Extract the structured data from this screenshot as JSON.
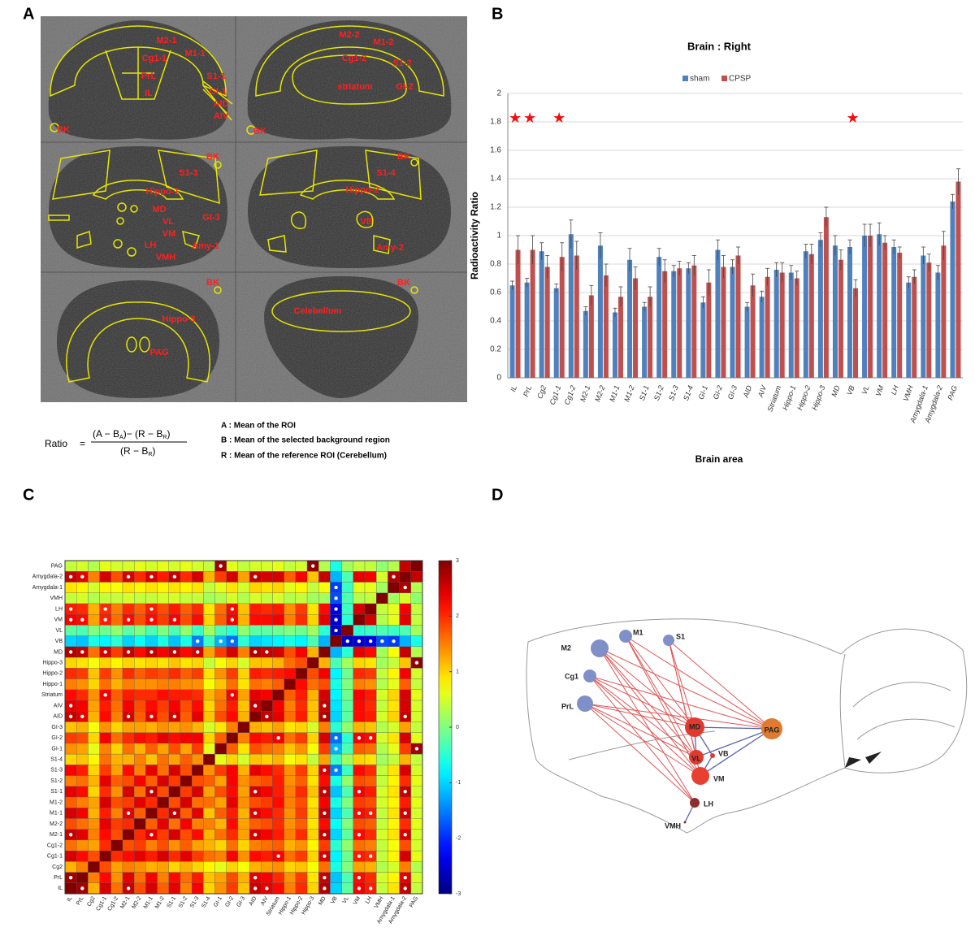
{
  "panel_labels": [
    "A",
    "B",
    "C",
    "D"
  ],
  "panel_a": {
    "labels": [
      "M2-1",
      "Cg1-1",
      "M1-1",
      "PrL",
      "S1-1",
      "IL",
      "GI-1",
      "AID",
      "AIV",
      "BK",
      "M2-2",
      "M1-2",
      "Cg1-2",
      "S1-2",
      "striatum",
      "GI-2",
      "BK",
      "BK",
      "S1-3",
      "Hippo-1",
      "MD",
      "VL",
      "GI-3",
      "VM",
      "LH",
      "Amy-1",
      "VMH",
      "BK",
      "S1-4",
      "Hippo-2",
      "VB",
      "Amy-2",
      "BK",
      "Hippo-3",
      "PAG",
      "BK",
      "Celebellum"
    ],
    "formula": {
      "lhs": "Ratio",
      "eq": "=",
      "num_1": "(A − B",
      "sub_1": "A",
      "num_2": ")− (R − B",
      "sub_2": "R",
      "num_3": ")",
      "den_1": "(R − B",
      "sub_3": "R",
      "den_2": ")"
    },
    "legend": [
      "A : Mean of the ROI",
      "B : Mean of the selected background region",
      "R : Mean of the reference ROI (Cerebellum)"
    ]
  },
  "chart_data": [
    {
      "type": "bar",
      "title": "Brain : Right",
      "y_label": "Radioactivity Ratio",
      "x_label": "Brain area",
      "categories": [
        "IL",
        "PrL",
        "Cg2",
        "Cg1-1",
        "Cg1-2",
        "M2-1",
        "M2-2",
        "M1-1",
        "M1-2",
        "S1-1",
        "S1-2",
        "S1-3",
        "S1-4",
        "GI-1",
        "GI-2",
        "GI-3",
        "AID",
        "AIV",
        "Striatum",
        "Hippo-1",
        "Hippo-2",
        "Hippo-3",
        "MD",
        "VB",
        "VL",
        "VM",
        "LH",
        "VMH",
        "Amygdala-1",
        "Amygdala-2",
        "PAG"
      ],
      "series": [
        {
          "name": "sham",
          "color": "#4f81bd",
          "values": [
            0.65,
            0.67,
            0.89,
            0.63,
            1.01,
            0.47,
            0.93,
            0.46,
            0.83,
            0.5,
            0.85,
            0.75,
            0.77,
            0.53,
            0.9,
            0.78,
            0.5,
            0.57,
            0.76,
            0.74,
            0.89,
            0.97,
            0.93,
            0.92,
            1.0,
            1.01,
            0.92,
            0.67,
            0.86,
            0.74,
            1.24
          ],
          "errors": [
            0.03,
            0.03,
            0.06,
            0.03,
            0.1,
            0.03,
            0.09,
            0.03,
            0.08,
            0.03,
            0.06,
            0.04,
            0.04,
            0.04,
            0.07,
            0.05,
            0.03,
            0.04,
            0.05,
            0.05,
            0.05,
            0.05,
            0.07,
            0.05,
            0.08,
            0.08,
            0.05,
            0.04,
            0.06,
            0.05,
            0.05
          ]
        },
        {
          "name": "CPSP",
          "color": "#c0504d",
          "values": [
            0.9,
            0.9,
            0.78,
            0.85,
            0.86,
            0.58,
            0.72,
            0.57,
            0.7,
            0.57,
            0.75,
            0.77,
            0.79,
            0.67,
            0.78,
            0.86,
            0.65,
            0.71,
            0.74,
            0.7,
            0.87,
            1.13,
            0.83,
            0.63,
            1.0,
            0.95,
            0.88,
            0.71,
            0.81,
            0.93,
            1.38
          ],
          "errors": [
            0.1,
            0.1,
            0.08,
            0.1,
            0.1,
            0.07,
            0.08,
            0.07,
            0.08,
            0.07,
            0.08,
            0.05,
            0.07,
            0.09,
            0.08,
            0.06,
            0.08,
            0.06,
            0.07,
            0.05,
            0.07,
            0.07,
            0.07,
            0.06,
            0.08,
            0.05,
            0.04,
            0.05,
            0.06,
            0.1,
            0.09
          ]
        }
      ],
      "ylim": [
        0,
        2
      ],
      "yticks": [
        0,
        0.2,
        0.4,
        0.6,
        0.8,
        1,
        1.2,
        1.4,
        1.6,
        1.8,
        2
      ],
      "grid": true,
      "stars": [
        {
          "category": "IL",
          "text": "★"
        },
        {
          "category": "PrL",
          "text": "★"
        },
        {
          "category": "Cg1-1",
          "text": "★"
        },
        {
          "category": "VB",
          "text": "★"
        }
      ]
    },
    {
      "type": "heatmap",
      "labels": [
        "IL",
        "PrL",
        "Cg2",
        "Cg1-1",
        "Cg1-2",
        "M2-1",
        "M2-2",
        "M1-1",
        "M1-2",
        "S1-1",
        "S1-2",
        "S1-3",
        "S1-4",
        "GI-1",
        "GI-2",
        "GI-3",
        "AID",
        "AIV",
        "Striatum",
        "Hippo-1",
        "Hippo-2",
        "Hippo-3",
        "MD",
        "VB",
        "VL",
        "VM",
        "LH",
        "VMH",
        "Amygdala-1",
        "Amygdala-2",
        "PAG"
      ],
      "matrix": [
        [
          3
        ],
        [
          2.8,
          3
        ],
        [
          1.2,
          1.5,
          3
        ],
        [
          2.5,
          2.2,
          1.8,
          3
        ],
        [
          1.6,
          1.4,
          1.3,
          2.0,
          3
        ],
        [
          2.6,
          2.4,
          1.5,
          2.2,
          1.8,
          3
        ],
        [
          1.8,
          1.6,
          1.4,
          2.4,
          1.9,
          2.0,
          3
        ],
        [
          2.5,
          2.3,
          1.2,
          2.1,
          1.5,
          2.4,
          1.7,
          3
        ],
        [
          1.7,
          1.5,
          1.3,
          2.5,
          1.8,
          1.9,
          2.4,
          2.0,
          3
        ],
        [
          2.4,
          2.2,
          1.0,
          2.0,
          1.4,
          2.5,
          1.6,
          2.6,
          1.8,
          3
        ],
        [
          1.5,
          1.6,
          1.2,
          2.4,
          1.7,
          1.8,
          2.3,
          1.7,
          2.5,
          1.9,
          3
        ],
        [
          2.3,
          2.1,
          1.0,
          1.9,
          1.3,
          2.2,
          1.5,
          2.4,
          1.6,
          2.5,
          1.8,
          3
        ],
        [
          1.0,
          1.1,
          0.8,
          1.6,
          1.2,
          1.2,
          1.5,
          1.1,
          1.6,
          1.3,
          1.7,
          1.4,
          3
        ],
        [
          1.4,
          1.3,
          0.6,
          1.5,
          1.0,
          1.6,
          1.2,
          1.7,
          1.3,
          1.8,
          1.3,
          1.9,
          0.6,
          3
        ],
        [
          1.9,
          1.8,
          1.0,
          2.3,
          1.6,
          2.0,
          2.2,
          2.1,
          2.4,
          2.2,
          2.3,
          2.3,
          1.0,
          1.7,
          3
        ],
        [
          1.1,
          1.2,
          0.7,
          1.4,
          1.0,
          1.3,
          1.3,
          1.2,
          1.4,
          1.3,
          1.4,
          1.2,
          0.5,
          0.9,
          1.5,
          3
        ],
        [
          2.6,
          2.4,
          1.2,
          2.2,
          1.5,
          2.5,
          1.7,
          2.4,
          1.8,
          2.5,
          1.7,
          2.4,
          1.1,
          1.8,
          2.2,
          1.2,
          3
        ],
        [
          2.4,
          2.3,
          1.3,
          2.1,
          1.6,
          2.3,
          1.8,
          2.2,
          1.9,
          2.3,
          1.8,
          2.2,
          1.0,
          1.6,
          2.1,
          1.1,
          2.6,
          3
        ],
        [
          2.2,
          2.0,
          1.4,
          2.3,
          1.7,
          2.1,
          2.0,
          2.0,
          2.2,
          2.1,
          2.1,
          2.0,
          1.2,
          1.5,
          2.3,
          1.3,
          2.4,
          2.3,
          3
        ],
        [
          1.5,
          1.4,
          1.0,
          1.6,
          1.2,
          1.5,
          1.4,
          1.4,
          1.5,
          1.5,
          1.4,
          1.4,
          0.7,
          1.1,
          1.6,
          0.9,
          1.6,
          1.5,
          1.7,
          3
        ],
        [
          2.0,
          1.9,
          1.1,
          1.9,
          1.4,
          2.0,
          1.7,
          1.9,
          1.8,
          2.0,
          1.7,
          1.9,
          0.9,
          1.4,
          1.9,
          1.0,
          2.1,
          2.0,
          2.1,
          2.2,
          3
        ],
        [
          1.0,
          0.9,
          0.7,
          1.0,
          0.8,
          1.0,
          0.9,
          1.0,
          0.9,
          1.1,
          0.9,
          1.0,
          0.4,
          0.7,
          1.0,
          0.5,
          1.1,
          1.1,
          1.2,
          1.6,
          1.8,
          3
        ],
        [
          2.7,
          2.6,
          1.6,
          2.5,
          1.9,
          2.6,
          2.2,
          2.6,
          2.3,
          2.6,
          2.2,
          2.5,
          1.3,
          1.9,
          2.5,
          1.5,
          2.7,
          2.6,
          2.5,
          1.8,
          2.3,
          1.2,
          3
        ],
        [
          -1.0,
          -1.1,
          -0.6,
          -0.8,
          -0.5,
          -1.0,
          -0.7,
          -1.0,
          -0.6,
          -1.1,
          -0.6,
          -1.5,
          -0.4,
          -1.2,
          -1.6,
          -0.5,
          -1.0,
          -0.9,
          -0.8,
          -0.6,
          -0.8,
          -0.3,
          -1.2,
          3
        ],
        [
          -0.2,
          -0.3,
          0.0,
          -0.1,
          0.1,
          -0.2,
          0.0,
          -0.3,
          0.0,
          -0.3,
          0.1,
          -0.4,
          0.2,
          -0.3,
          -0.5,
          0.1,
          -0.2,
          -0.2,
          -0.1,
          0.0,
          -0.1,
          0.2,
          -0.5,
          -2.6,
          3
        ],
        [
          2.3,
          2.2,
          1.3,
          2.1,
          1.6,
          2.2,
          1.8,
          2.2,
          1.9,
          2.3,
          1.8,
          2.2,
          1.0,
          1.7,
          2.3,
          1.2,
          2.2,
          2.2,
          2.3,
          1.5,
          2.0,
          1.0,
          2.4,
          -2.5,
          -0.5,
          3
        ],
        [
          2.1,
          2.0,
          1.2,
          2.0,
          1.5,
          2.0,
          1.7,
          2.1,
          1.8,
          2.1,
          1.7,
          2.0,
          0.9,
          1.6,
          2.2,
          1.1,
          2.1,
          2.0,
          2.1,
          1.4,
          1.9,
          0.9,
          2.2,
          -2.4,
          -0.4,
          2.5,
          3
        ],
        [
          0.4,
          0.5,
          0.3,
          0.4,
          0.4,
          0.5,
          0.4,
          0.4,
          0.5,
          0.5,
          0.4,
          0.4,
          0.2,
          0.3,
          0.5,
          0.3,
          0.5,
          0.4,
          0.5,
          0.3,
          0.4,
          0.2,
          0.2,
          -1.8,
          -0.3,
          0.3,
          0.4,
          3
        ],
        [
          0.9,
          0.8,
          0.5,
          0.8,
          0.7,
          0.9,
          0.8,
          0.9,
          0.8,
          0.9,
          0.8,
          0.9,
          0.4,
          0.6,
          0.9,
          0.5,
          1.0,
          0.9,
          1.0,
          0.6,
          0.8,
          0.4,
          0.7,
          -1.9,
          -0.4,
          0.6,
          0.6,
          0.2,
          3
        ],
        [
          2.6,
          2.4,
          1.5,
          2.5,
          1.8,
          2.5,
          2.0,
          2.5,
          2.1,
          2.6,
          2.0,
          2.5,
          1.2,
          1.9,
          2.5,
          1.3,
          2.6,
          2.5,
          2.5,
          1.7,
          2.3,
          1.1,
          2.6,
          -1.2,
          -0.3,
          2.4,
          2.3,
          0.5,
          2.7,
          3
        ],
        [
          0.4,
          0.5,
          0.3,
          0.6,
          0.5,
          0.5,
          0.6,
          0.5,
          0.6,
          0.5,
          0.6,
          0.5,
          0.4,
          2.8,
          0.6,
          0.4,
          0.5,
          0.5,
          0.6,
          0.4,
          0.5,
          2.9,
          0.3,
          -0.6,
          0.2,
          0.4,
          0.4,
          0.1,
          0.3,
          2.6,
          3
        ]
      ],
      "significant": [
        [
          22,
          0
        ],
        [
          22,
          1
        ],
        [
          22,
          3
        ],
        [
          22,
          5
        ],
        [
          22,
          7
        ],
        [
          22,
          9
        ],
        [
          22,
          11
        ],
        [
          22,
          16
        ],
        [
          22,
          17
        ],
        [
          25,
          0
        ],
        [
          25,
          1
        ],
        [
          25,
          3
        ],
        [
          25,
          5
        ],
        [
          25,
          7
        ],
        [
          25,
          9
        ],
        [
          25,
          14
        ],
        [
          26,
          0
        ],
        [
          26,
          3
        ],
        [
          26,
          7
        ],
        [
          26,
          14
        ],
        [
          29,
          0
        ],
        [
          29,
          1
        ],
        [
          29,
          5
        ],
        [
          29,
          7
        ],
        [
          29,
          9
        ],
        [
          29,
          16
        ],
        [
          29,
          28
        ],
        [
          16,
          0
        ],
        [
          16,
          1
        ],
        [
          16,
          5
        ],
        [
          16,
          7
        ],
        [
          16,
          9
        ],
        [
          17,
          0
        ],
        [
          17,
          16
        ],
        [
          18,
          3
        ],
        [
          18,
          14
        ],
        [
          1,
          0
        ],
        [
          5,
          0
        ],
        [
          7,
          5
        ],
        [
          9,
          7
        ],
        [
          23,
          11
        ],
        [
          23,
          13
        ],
        [
          23,
          14
        ],
        [
          24,
          23
        ],
        [
          25,
          23
        ],
        [
          26,
          23
        ],
        [
          27,
          23
        ],
        [
          28,
          23
        ],
        [
          30,
          13
        ],
        [
          30,
          21
        ]
      ],
      "clim": [
        -3,
        3
      ],
      "cticks": [
        -3,
        -2,
        -1,
        0,
        1,
        2,
        3
      ],
      "colormap": "jet"
    }
  ],
  "panel_d": {
    "nodes": [
      {
        "label": "M2",
        "color": "#7f8fc8"
      },
      {
        "label": "M1",
        "color": "#7f8fc8"
      },
      {
        "label": "S1",
        "color": "#7f8fc8"
      },
      {
        "label": "Cg1",
        "color": "#7f8fc8"
      },
      {
        "label": "PrL",
        "color": "#7f8fc8"
      },
      {
        "label": "MD",
        "color": "#e03a30"
      },
      {
        "label": "VL",
        "color": "#e03a30"
      },
      {
        "label": "VB",
        "color": "#e03a30"
      },
      {
        "label": "VM",
        "color": "#e84030"
      },
      {
        "label": "LH",
        "color": "#8b2e2e"
      },
      {
        "label": "VMH",
        "color": "#8b2e2e"
      },
      {
        "label": "PAG",
        "color": "#e07a30"
      }
    ],
    "edge_groups": [
      {
        "color": "#e05555",
        "pairs": [
          [
            0,
            5
          ],
          [
            0,
            6
          ],
          [
            0,
            8
          ],
          [
            0,
            11
          ],
          [
            0,
            9
          ],
          [
            1,
            5
          ],
          [
            1,
            6
          ],
          [
            1,
            8
          ],
          [
            1,
            11
          ],
          [
            2,
            5
          ],
          [
            2,
            6
          ],
          [
            2,
            8
          ],
          [
            2,
            11
          ],
          [
            3,
            5
          ],
          [
            3,
            6
          ],
          [
            3,
            8
          ],
          [
            3,
            11
          ],
          [
            3,
            9
          ],
          [
            4,
            5
          ],
          [
            4,
            6
          ],
          [
            4,
            8
          ],
          [
            4,
            11
          ],
          [
            4,
            9
          ]
        ]
      },
      {
        "color": "#5563b0",
        "pairs": [
          [
            5,
            7
          ],
          [
            5,
            6
          ],
          [
            6,
            11
          ],
          [
            8,
            11
          ],
          [
            7,
            8
          ],
          [
            9,
            10
          ],
          [
            5,
            11
          ]
        ]
      }
    ]
  }
}
